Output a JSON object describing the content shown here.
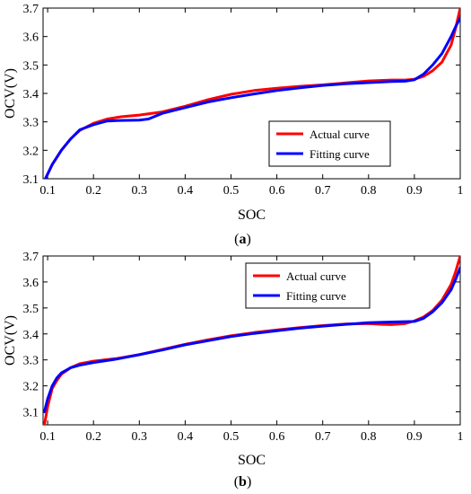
{
  "chart_data": [
    {
      "type": "line",
      "panel_label": "a",
      "xlabel": "SOC",
      "ylabel": "OCV(V)",
      "xlim": [
        0.09,
        1.0
      ],
      "ylim": [
        3.1,
        3.7
      ],
      "xticks": [
        "0.1",
        "0.2",
        "0.3",
        "0.4",
        "0.5",
        "0.6",
        "0.7",
        "0.8",
        "0.9",
        "1"
      ],
      "yticks": [
        "3.1",
        "3.2",
        "3.3",
        "3.4",
        "3.5",
        "3.6",
        "3.7"
      ],
      "legend_position": "bottom-right",
      "series": [
        {
          "name": "Actual curve",
          "color": "#ff0000",
          "x": [
            0.095,
            0.11,
            0.13,
            0.15,
            0.17,
            0.2,
            0.23,
            0.26,
            0.3,
            0.35,
            0.4,
            0.45,
            0.5,
            0.55,
            0.6,
            0.65,
            0.7,
            0.75,
            0.8,
            0.85,
            0.88,
            0.9,
            0.92,
            0.94,
            0.96,
            0.98,
            0.99,
            1.0
          ],
          "y": [
            3.1,
            3.15,
            3.2,
            3.24,
            3.27,
            3.295,
            3.31,
            3.318,
            3.324,
            3.335,
            3.355,
            3.378,
            3.397,
            3.41,
            3.418,
            3.425,
            3.43,
            3.437,
            3.444,
            3.447,
            3.447,
            3.45,
            3.46,
            3.48,
            3.51,
            3.57,
            3.63,
            3.7
          ]
        },
        {
          "name": "Fitting curve",
          "color": "#0000ff",
          "x": [
            0.095,
            0.11,
            0.13,
            0.15,
            0.17,
            0.2,
            0.23,
            0.26,
            0.3,
            0.32,
            0.35,
            0.4,
            0.45,
            0.5,
            0.55,
            0.6,
            0.65,
            0.7,
            0.75,
            0.8,
            0.85,
            0.88,
            0.9,
            0.92,
            0.94,
            0.96,
            0.98,
            0.99,
            1.0
          ],
          "y": [
            3.1,
            3.15,
            3.2,
            3.24,
            3.272,
            3.29,
            3.303,
            3.305,
            3.306,
            3.31,
            3.33,
            3.35,
            3.37,
            3.385,
            3.398,
            3.41,
            3.42,
            3.428,
            3.434,
            3.438,
            3.442,
            3.443,
            3.448,
            3.468,
            3.5,
            3.54,
            3.6,
            3.635,
            3.665
          ]
        }
      ]
    },
    {
      "type": "line",
      "panel_label": "b",
      "xlabel": "SOC",
      "ylabel": "OCV(V)",
      "xlim": [
        0.09,
        1.0
      ],
      "ylim": [
        3.05,
        3.7
      ],
      "xticks": [
        "0.1",
        "0.2",
        "0.3",
        "0.4",
        "0.5",
        "0.6",
        "0.7",
        "0.8",
        "0.9",
        "1"
      ],
      "yticks": [
        "3.1",
        "3.2",
        "3.3",
        "3.4",
        "3.5",
        "3.6",
        "3.7"
      ],
      "legend_position": "top-right",
      "series": [
        {
          "name": "Actual curve",
          "color": "#ff0000",
          "x": [
            0.093,
            0.1,
            0.11,
            0.12,
            0.13,
            0.15,
            0.17,
            0.2,
            0.25,
            0.3,
            0.35,
            0.4,
            0.45,
            0.5,
            0.55,
            0.6,
            0.65,
            0.7,
            0.75,
            0.8,
            0.83,
            0.85,
            0.88,
            0.9,
            0.92,
            0.94,
            0.96,
            0.98,
            0.99,
            1.0
          ],
          "y": [
            3.05,
            3.12,
            3.19,
            3.22,
            3.245,
            3.27,
            3.285,
            3.295,
            3.305,
            3.32,
            3.34,
            3.36,
            3.377,
            3.393,
            3.405,
            3.415,
            3.424,
            3.432,
            3.438,
            3.44,
            3.437,
            3.436,
            3.44,
            3.45,
            3.465,
            3.49,
            3.53,
            3.59,
            3.64,
            3.7
          ]
        },
        {
          "name": "Fitting curve",
          "color": "#0000ff",
          "x": [
            0.093,
            0.1,
            0.11,
            0.12,
            0.13,
            0.15,
            0.17,
            0.2,
            0.25,
            0.3,
            0.35,
            0.4,
            0.45,
            0.5,
            0.55,
            0.6,
            0.65,
            0.7,
            0.75,
            0.8,
            0.85,
            0.9,
            0.92,
            0.94,
            0.96,
            0.98,
            0.99,
            1.0
          ],
          "y": [
            3.1,
            3.15,
            3.2,
            3.23,
            3.25,
            3.27,
            3.28,
            3.29,
            3.303,
            3.32,
            3.338,
            3.358,
            3.374,
            3.39,
            3.402,
            3.412,
            3.422,
            3.43,
            3.437,
            3.443,
            3.446,
            3.448,
            3.46,
            3.485,
            3.52,
            3.57,
            3.61,
            3.655
          ]
        }
      ]
    }
  ]
}
